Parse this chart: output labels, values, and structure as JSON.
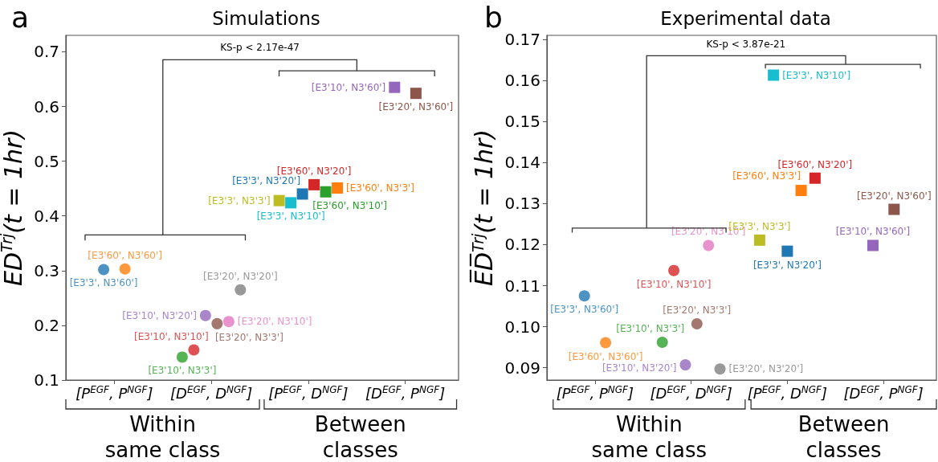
{
  "chart_data": [
    {
      "type": "scatter",
      "title": "Simulations",
      "ylabel": "E̅D̅$^{Trj}$(t = 1hr)",
      "annotations": [
        "a",
        "KS-p < 2.17e-47",
        "Within same class",
        "Between classes"
      ],
      "categories": [
        "[P$^{EGF}$, P$^{NGF}$]",
        "[D$^{EGF}$, D$^{NGF}$]",
        "[P$^{EGF}$, D$^{NGF}$]",
        "[D$^{EGF}$, P$^{NGF}$]"
      ],
      "ylim": [
        0.1,
        0.73
      ],
      "yticks": [
        0.1,
        0.2,
        0.3,
        0.4,
        0.5,
        0.6,
        0.7
      ],
      "series": [
        {
          "name": "[E3'3', N3'60']",
          "color": "#1f77b4",
          "marker": "circle",
          "x": [
            "[P$^{EGF}$, P$^{NGF}$]"
          ],
          "values": [
            0.302
          ]
        },
        {
          "name": "[E3'60', N3'60']",
          "color": "#ff7f0e",
          "marker": "circle",
          "x": [
            "[P$^{EGF}$, P$^{NGF}$]"
          ],
          "values": [
            0.303
          ]
        },
        {
          "name": "[E3'10', N3'3']",
          "color": "#2ca02c",
          "marker": "circle",
          "x": [
            "[D$^{EGF}$, D$^{NGF}$]"
          ],
          "values": [
            0.142
          ]
        },
        {
          "name": "[E3'10', N3'10']",
          "color": "#d62728",
          "marker": "circle",
          "x": [
            "[D$^{EGF}$, D$^{NGF}$]"
          ],
          "values": [
            0.155
          ]
        },
        {
          "name": "[E3'10', N3'20']",
          "color": "#9467bd",
          "marker": "circle",
          "x": [
            "[D$^{EGF}$, D$^{NGF}$]"
          ],
          "values": [
            0.218
          ]
        },
        {
          "name": "[E3'20', N3'3']",
          "color": "#8c564b",
          "marker": "circle",
          "x": [
            "[D$^{EGF}$, D$^{NGF}$]"
          ],
          "values": [
            0.203
          ]
        },
        {
          "name": "[E3'20', N3'10']",
          "color": "#e377c2",
          "marker": "circle",
          "x": [
            "[D$^{EGF}$, D$^{NGF}$]"
          ],
          "values": [
            0.207
          ]
        },
        {
          "name": "[E3'20', N3'20']",
          "color": "#7f7f7f",
          "marker": "circle",
          "x": [
            "[D$^{EGF}$, D$^{NGF}$]"
          ],
          "values": [
            0.265
          ]
        },
        {
          "name": "[E3'3', N3'3']",
          "color": "#bcbd22",
          "marker": "square",
          "x": [
            "[P$^{EGF}$, D$^{NGF}$]"
          ],
          "values": [
            0.428
          ]
        },
        {
          "name": "[E3'3', N3'10']",
          "color": "#17becf",
          "marker": "square",
          "x": [
            "[P$^{EGF}$, D$^{NGF}$]"
          ],
          "values": [
            0.424
          ]
        },
        {
          "name": "[E3'3', N3'20']",
          "color": "#1f77b4",
          "marker": "square",
          "x": [
            "[P$^{EGF}$, D$^{NGF}$]"
          ],
          "values": [
            0.44
          ]
        },
        {
          "name": "[E3'60', N3'20']",
          "color": "#d62728",
          "marker": "square",
          "x": [
            "[P$^{EGF}$, D$^{NGF}$]"
          ],
          "values": [
            0.457
          ]
        },
        {
          "name": "[E3'60', N3'10']",
          "color": "#2ca02c",
          "marker": "square",
          "x": [
            "[P$^{EGF}$, D$^{NGF}$]"
          ],
          "values": [
            0.444
          ]
        },
        {
          "name": "[E3'60', N3'3']",
          "color": "#ff7f0e",
          "marker": "square",
          "x": [
            "[P$^{EGF}$, D$^{NGF}$]"
          ],
          "values": [
            0.451
          ]
        },
        {
          "name": "[E3'10', N3'60']",
          "color": "#9467bd",
          "marker": "square",
          "x": [
            "[D$^{EGF}$, P$^{NGF}$]"
          ],
          "values": [
            0.635
          ]
        },
        {
          "name": "[E3'20', N3'60']",
          "color": "#8c564b",
          "marker": "square",
          "x": [
            "[D$^{EGF}$, P$^{NGF}$]"
          ],
          "values": [
            0.624
          ]
        }
      ]
    },
    {
      "type": "scatter",
      "title": "Experimental data",
      "ylabel": "E̅D̅$^{Trj}$(t = 1hr)",
      "annotations": [
        "b",
        "KS-p < 3.87e-21",
        "Within same class",
        "Between classes"
      ],
      "categories": [
        "[P$^{EGF}$, P$^{NGF}$]",
        "[D$^{EGF}$, D$^{NGF}$]",
        "[P$^{EGF}$, D$^{NGF}$]",
        "[D$^{EGF}$, P$^{NGF}$]"
      ],
      "ylim": [
        0.087,
        0.171
      ],
      "yticks": [
        0.09,
        {
          "value": 0.1,
          "label": "0.10"
        },
        0.11,
        0.12,
        0.13,
        0.14,
        0.15,
        0.16,
        0.17
      ],
      "series": [
        {
          "name": "[E3'3', N3'60']",
          "color": "#1f77b4",
          "marker": "circle",
          "x": [
            "[P$^{EGF}$, P$^{NGF}$]"
          ],
          "values": [
            0.1075
          ]
        },
        {
          "name": "[E3'60', N3'60']",
          "color": "#ff7f0e",
          "marker": "circle",
          "x": [
            "[P$^{EGF}$, P$^{NGF}$]"
          ],
          "values": [
            0.0961
          ]
        },
        {
          "name": "[E3'10', N3'3']",
          "color": "#2ca02c",
          "marker": "circle",
          "x": [
            "[D$^{EGF}$, D$^{NGF}$]"
          ],
          "values": [
            0.0962
          ]
        },
        {
          "name": "[E3'10', N3'10']",
          "color": "#d62728",
          "marker": "circle",
          "x": [
            "[D$^{EGF}$, D$^{NGF}$]"
          ],
          "values": [
            0.1137
          ]
        },
        {
          "name": "[E3'10', N3'20']",
          "color": "#9467bd",
          "marker": "circle",
          "x": [
            "[D$^{EGF}$, D$^{NGF}$]"
          ],
          "values": [
            0.0907
          ]
        },
        {
          "name": "[E3'20', N3'3']",
          "color": "#8c564b",
          "marker": "circle",
          "x": [
            "[D$^{EGF}$, D$^{NGF}$]"
          ],
          "values": [
            0.1007
          ]
        },
        {
          "name": "[E3'20', N3'10']",
          "color": "#e377c2",
          "marker": "circle",
          "x": [
            "[D$^{EGF}$, D$^{NGF}$]"
          ],
          "values": [
            0.1198
          ]
        },
        {
          "name": "[E3'20', N3'20']",
          "color": "#7f7f7f",
          "marker": "circle",
          "x": [
            "[D$^{EGF}$, D$^{NGF}$]"
          ],
          "values": [
            0.0897
          ]
        },
        {
          "name": "[E3'3', N3'3']",
          "color": "#bcbd22",
          "marker": "square",
          "x": [
            "[P$^{EGF}$, D$^{NGF}$]"
          ],
          "values": [
            0.1211
          ]
        },
        {
          "name": "[E3'3', N3'10']",
          "color": "#17becf",
          "marker": "square",
          "x": [
            "[P$^{EGF}$, D$^{NGF}$]"
          ],
          "values": [
            0.1613
          ]
        },
        {
          "name": "[E3'3', N3'20']",
          "color": "#1f77b4",
          "marker": "square",
          "x": [
            "[P$^{EGF}$, D$^{NGF}$]"
          ],
          "values": [
            0.1184
          ]
        },
        {
          "name": "[E3'60', N3'3']",
          "color": "#ff7f0e",
          "marker": "square",
          "x": [
            "[P$^{EGF}$, D$^{NGF}$]"
          ],
          "values": [
            0.1332
          ]
        },
        {
          "name": "[E3'60', N3'20']",
          "color": "#d62728",
          "marker": "square",
          "x": [
            "[P$^{EGF}$, D$^{NGF}$]"
          ],
          "values": [
            0.1362
          ]
        },
        {
          "name": "[E3'10', N3'60']",
          "color": "#9467bd",
          "marker": "square",
          "x": [
            "[D$^{EGF}$, P$^{NGF}$]"
          ],
          "values": [
            0.1198
          ]
        },
        {
          "name": "[E3'20', N3'60']",
          "color": "#8c564b",
          "marker": "square",
          "x": [
            "[D$^{EGF}$, P$^{NGF}$]"
          ],
          "values": [
            0.1286
          ]
        }
      ]
    }
  ]
}
